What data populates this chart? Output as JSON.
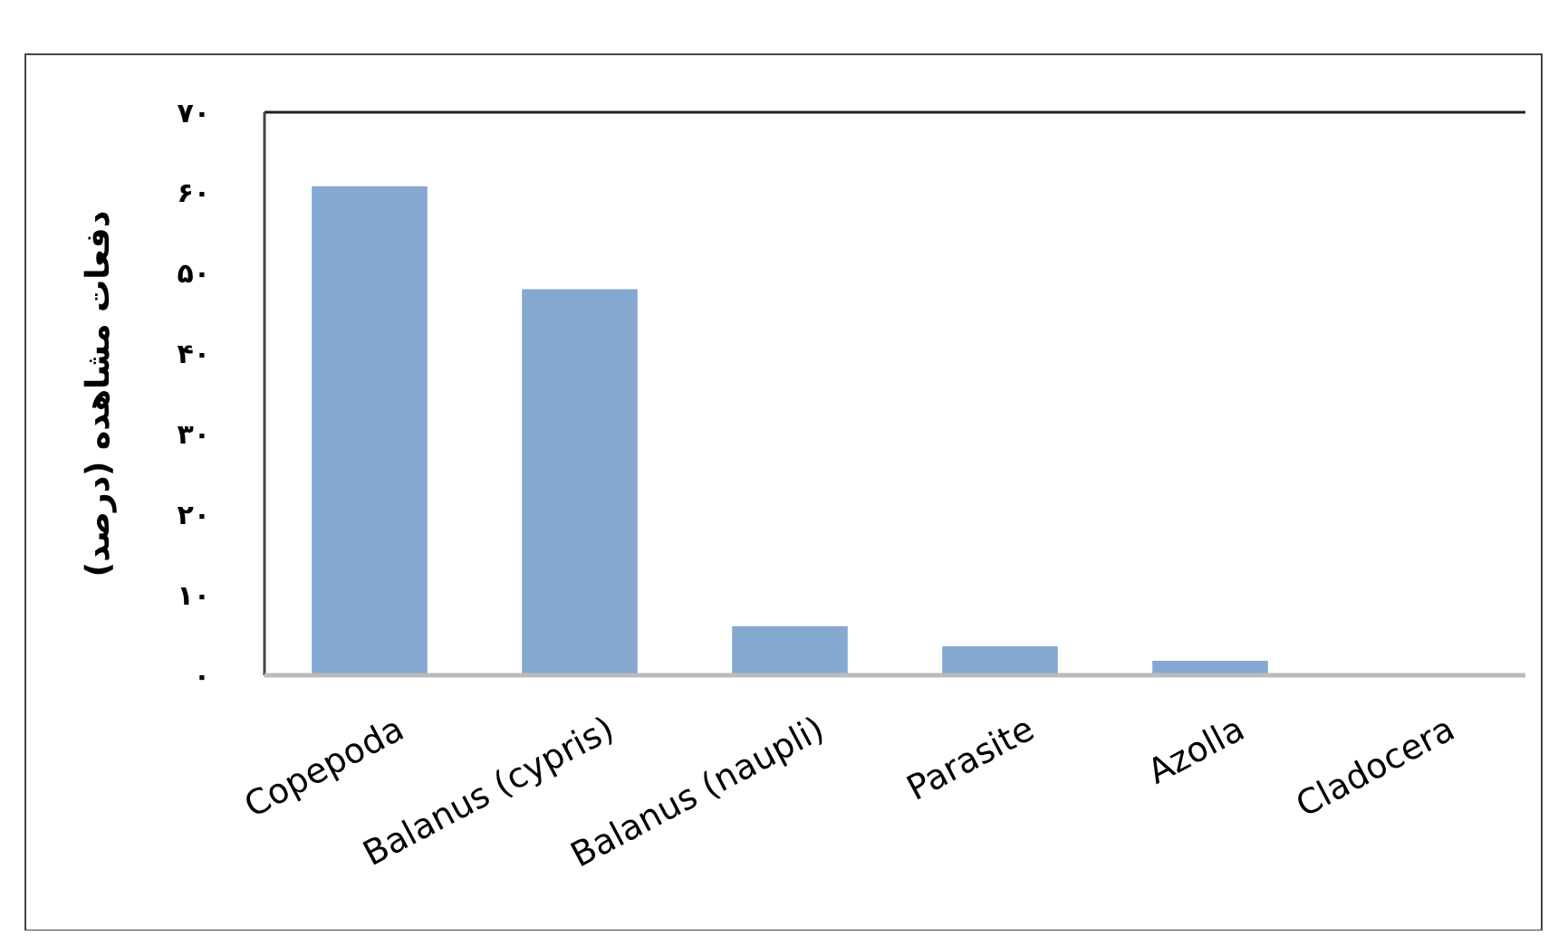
{
  "chart_data": {
    "type": "bar",
    "ylabel": "دفعات مشاهده (درصد)",
    "categories": [
      "Copepoda",
      "Balanus (cypris)",
      "Balanus (naupli)",
      "Parasite",
      "Azolla",
      "Cladocera"
    ],
    "values": [
      60.8,
      48,
      6.1,
      3.6,
      1.8,
      0.2
    ],
    "color": "#85a8d0",
    "ylim": [
      0,
      70
    ],
    "yticks": [
      {
        "value": 0,
        "label": "۰"
      },
      {
        "value": 10,
        "label": "۱۰"
      },
      {
        "value": 20,
        "label": "۲۰"
      },
      {
        "value": 30,
        "label": "۳۰"
      },
      {
        "value": 40,
        "label": "۴۰"
      },
      {
        "value": 50,
        "label": "۵۰"
      },
      {
        "value": 60,
        "label": "۶۰"
      },
      {
        "value": 70,
        "label": "۷۰"
      }
    ],
    "grid": false
  }
}
